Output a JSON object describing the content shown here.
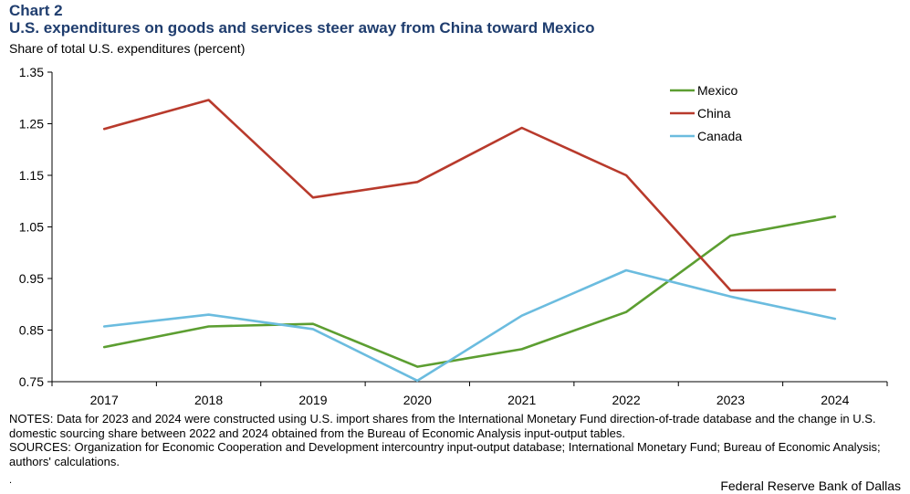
{
  "header": {
    "chart_label": "Chart 2",
    "title": "U.S. expenditures on goods and services steer away from China toward Mexico"
  },
  "footer": {
    "notes": "NOTES: Data for 2023 and 2024 were constructed using U.S. import shares from the International Monetary Fund direction-of-trade database and the change in U.S. domestic sourcing share between 2022 and 2024 obtained from the Bureau of Economic Analysis input-output tables.",
    "sources": "SOURCES: Organization for Economic Cooperation and Development intercountry input-output database; International Monetary Fund; Bureau of Economic Analysis; authors' calculations.",
    "dot": ".",
    "credit": "Federal Reserve Bank of Dallas"
  },
  "chart_data": {
    "type": "line",
    "title": "U.S. expenditures on goods and services steer away from China toward Mexico",
    "ylabel": "Share of total U.S. expenditures (percent)",
    "xlabel": "",
    "ylim": [
      0.75,
      1.35
    ],
    "yticks": [
      "0.75",
      "0.85",
      "0.95",
      "1.05",
      "1.15",
      "1.25",
      "1.35"
    ],
    "categories": [
      "2017",
      "2018",
      "2019",
      "2020",
      "2021",
      "2022",
      "2023",
      "2024"
    ],
    "grid": false,
    "legend_position": "top-right",
    "series": [
      {
        "name": "Mexico",
        "color": "#5c9e31",
        "values": [
          0.817,
          0.857,
          0.862,
          0.779,
          0.813,
          0.885,
          1.033,
          1.07
        ]
      },
      {
        "name": "China",
        "color": "#b83a2c",
        "values": [
          1.24,
          1.296,
          1.107,
          1.137,
          1.242,
          1.15,
          0.927,
          0.928
        ]
      },
      {
        "name": "Canada",
        "color": "#6bbcdf",
        "values": [
          0.857,
          0.88,
          0.852,
          0.752,
          0.878,
          0.966,
          0.915,
          0.872
        ]
      }
    ]
  }
}
